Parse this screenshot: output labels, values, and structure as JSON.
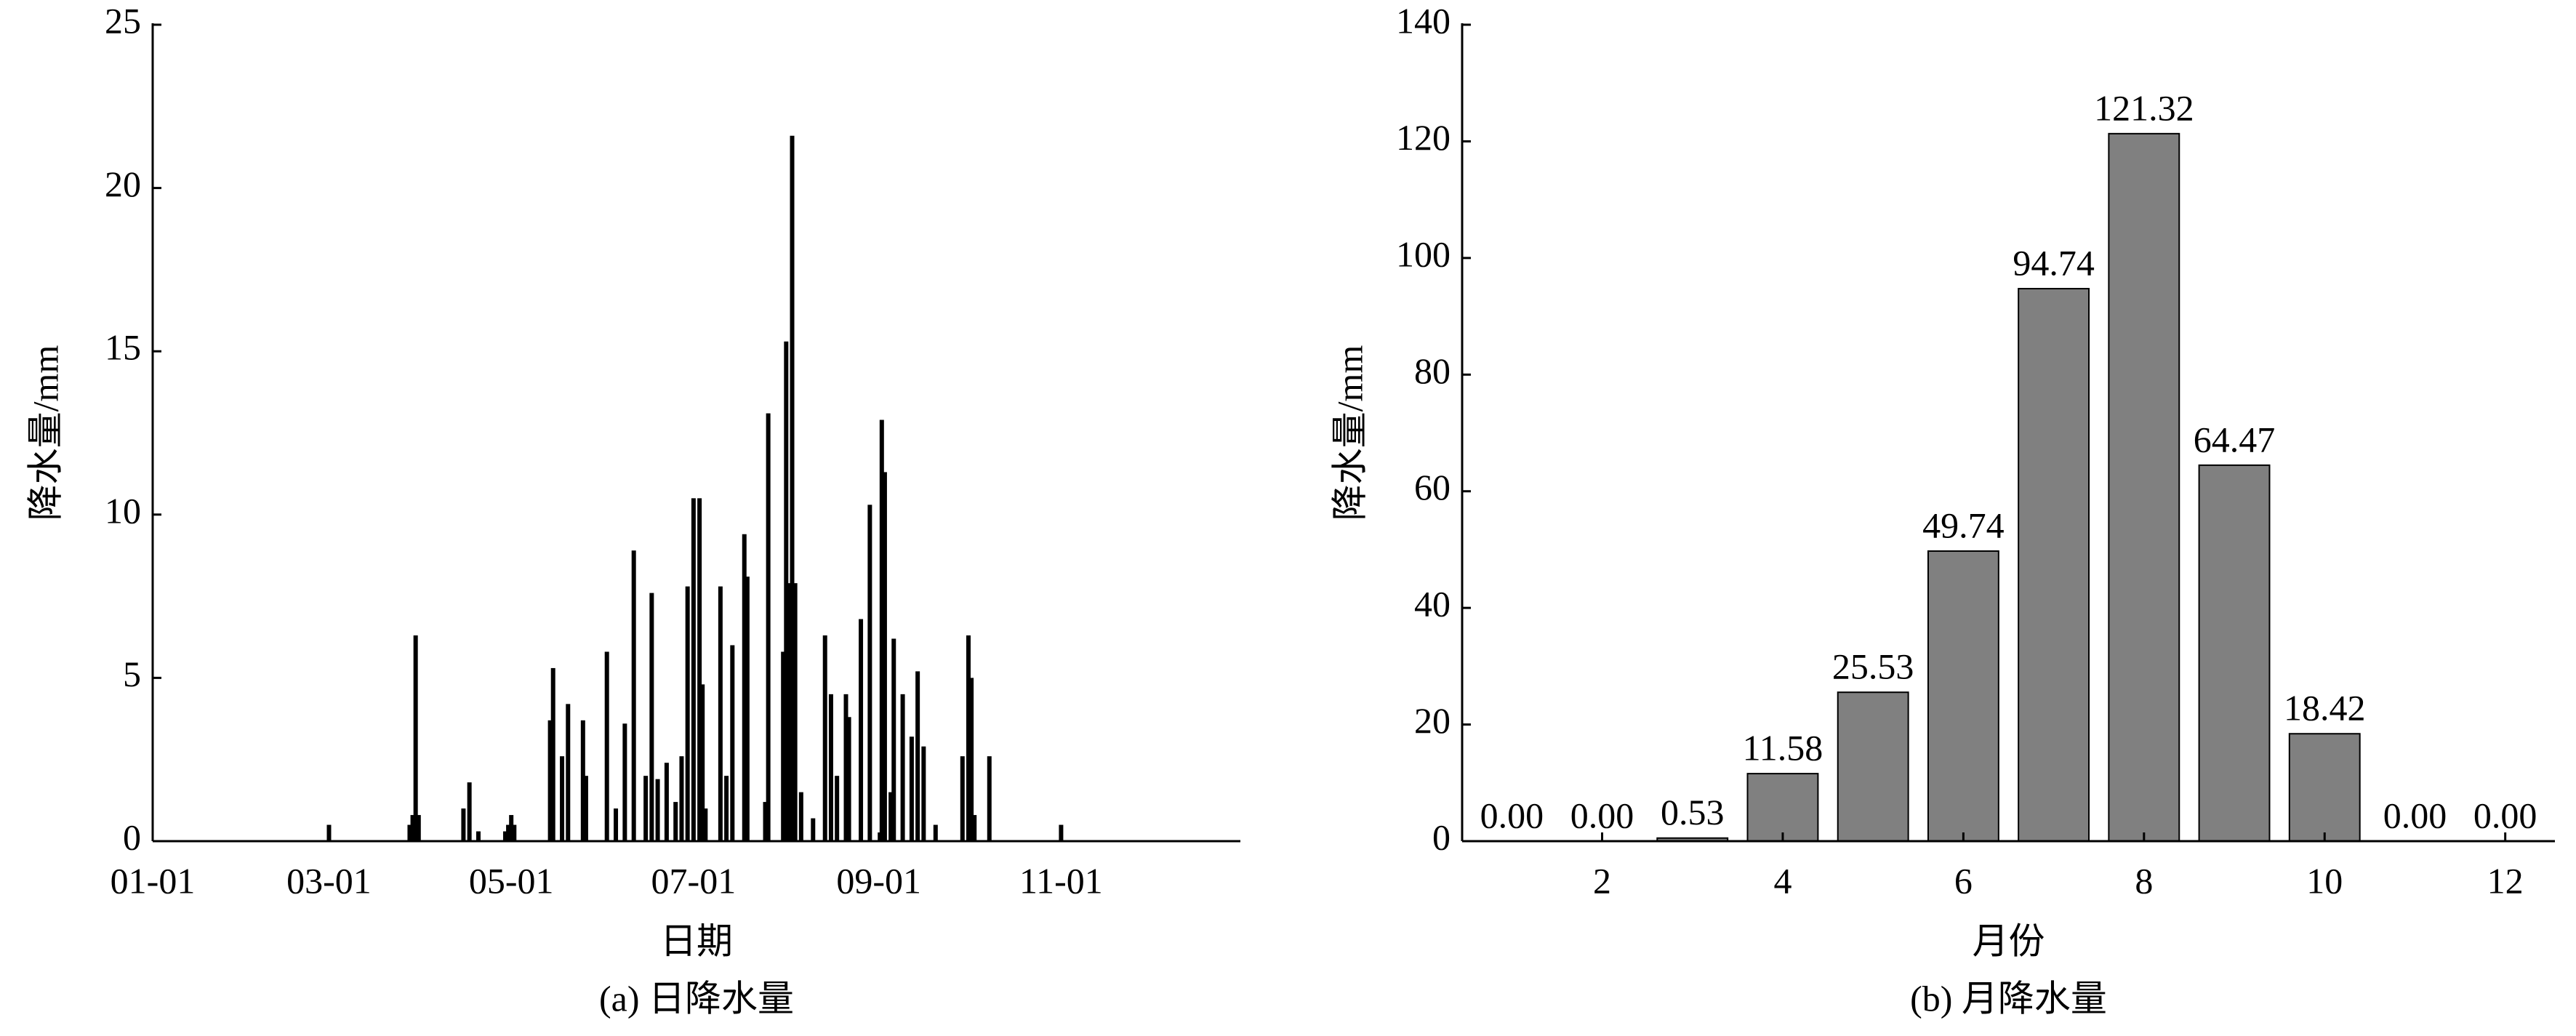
{
  "chart_data": [
    {
      "type": "bar",
      "x": [
        "03-01",
        "03-28",
        "03-29",
        "03-30",
        "03-31",
        "04-15",
        "04-17",
        "04-20",
        "04-29",
        "04-30",
        "05-01",
        "05-02",
        "05-14",
        "05-15",
        "05-18",
        "05-20",
        "05-25",
        "05-26",
        "06-02",
        "06-05",
        "06-08",
        "06-11",
        "06-15",
        "06-17",
        "06-19",
        "06-22",
        "06-25",
        "06-27",
        "06-29",
        "07-01",
        "07-03",
        "07-04",
        "07-05",
        "07-10",
        "07-12",
        "07-14",
        "07-18",
        "07-19",
        "07-25",
        "07-26",
        "07-31",
        "08-01",
        "08-02",
        "08-03",
        "08-04",
        "08-06",
        "08-10",
        "08-14",
        "08-16",
        "08-18",
        "08-21",
        "08-22",
        "08-26",
        "08-29",
        "09-02",
        "09-03",
        "09-05",
        "09-06",
        "09-09",
        "09-12",
        "09-14",
        "09-16",
        "09-20",
        "09-29",
        "10-01",
        "10-02",
        "10-03",
        "10-08",
        "11-01"
      ],
      "values": [
        0.5,
        0.5,
        0.8,
        6.3,
        0.8,
        1.0,
        1.8,
        0.3,
        0.3,
        0.5,
        0.8,
        0.5,
        3.7,
        5.3,
        2.6,
        4.2,
        3.7,
        2.0,
        5.8,
        1.0,
        3.6,
        8.9,
        2.0,
        7.6,
        1.9,
        2.4,
        1.2,
        2.6,
        7.8,
        10.5,
        10.5,
        4.8,
        1.0,
        7.8,
        2.0,
        6.0,
        9.4,
        8.1,
        1.2,
        13.1,
        5.8,
        15.3,
        7.9,
        21.6,
        7.9,
        1.5,
        0.7,
        6.3,
        4.5,
        2.0,
        4.5,
        3.8,
        6.8,
        10.3,
        12.9,
        11.3,
        1.5,
        6.2,
        4.5,
        3.2,
        5.2,
        2.9,
        0.5,
        2.6,
        6.3,
        5.0,
        0.8,
        2.6,
        0.5
      ],
      "color": "#000000",
      "xlim": [
        "01-01",
        "12-31"
      ],
      "xticks": [
        "01-01",
        "03-01",
        "05-01",
        "07-01",
        "09-01",
        "11-01"
      ],
      "ylim": [
        0,
        25
      ],
      "yticks": [
        0,
        5,
        10,
        15,
        20,
        25
      ],
      "x_label": "日期",
      "y_label": "降水量/mm",
      "caption": "(a) 日降水量"
    },
    {
      "type": "bar",
      "x": [
        1,
        2,
        3,
        4,
        5,
        6,
        7,
        8,
        9,
        10,
        11,
        12
      ],
      "values": [
        0,
        0,
        0.53,
        11.58,
        25.53,
        49.74,
        94.74,
        121.32,
        64.47,
        18.42,
        0,
        0
      ],
      "value_labels": [
        "0.00",
        "0.00",
        "0.53",
        "11.58",
        "25.53",
        "49.74",
        "94.74",
        "121.32",
        "64.47",
        "18.42",
        "0.00",
        "0.00"
      ],
      "color": "#808080",
      "xlim": [
        0.45,
        12.55
      ],
      "xticks": [
        2,
        4,
        6,
        8,
        10,
        12
      ],
      "ylim": [
        0,
        140
      ],
      "yticks": [
        0,
        20,
        40,
        60,
        80,
        100,
        120,
        140
      ],
      "x_label": "月份",
      "y_label": "降水量/mm",
      "caption": "(b) 月降水量"
    }
  ]
}
